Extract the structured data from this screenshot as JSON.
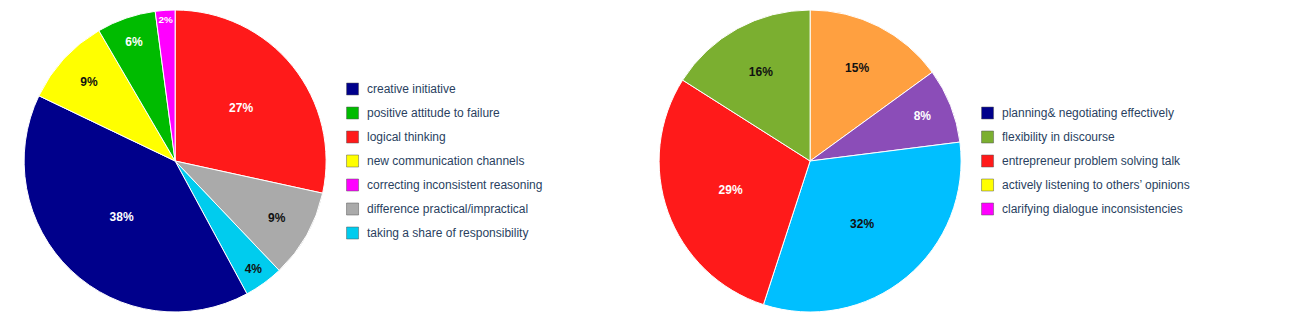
{
  "chart_data": [
    {
      "type": "pie",
      "values": [
        27,
        9,
        4,
        38,
        9,
        6,
        2
      ],
      "value_labels": [
        "27%",
        "9%",
        "4%",
        "38%",
        "9%",
        "6%",
        "2%"
      ],
      "colors": [
        "#FF1A1A",
        "#AAAAAA",
        "#00CCEE",
        "#00008B",
        "#FFFF00",
        "#00BB00",
        "#FF00FF"
      ],
      "data_labels": true,
      "legend": "right",
      "legend_entries": [
        {
          "name": "creative initiative",
          "color": "#00008B"
        },
        {
          "name": "positive attitude to failure",
          "color": "#00BB00"
        },
        {
          "name": "logical thinking",
          "color": "#FF1A1A"
        },
        {
          "name": "new communication channels",
          "color": "#FFFF00"
        },
        {
          "name": "correcting inconsistent reasoning",
          "color": "#FF00FF"
        },
        {
          "name": "difference practical/impractical",
          "color": "#AAAAAA"
        },
        {
          "name": "taking a share of responsibility",
          "color": "#00CCEE"
        }
      ]
    },
    {
      "type": "pie",
      "values": [
        15,
        8,
        32,
        29,
        16
      ],
      "value_labels": [
        "15%",
        "8%",
        "32%",
        "29%",
        "16%"
      ],
      "colors": [
        "#FFA040",
        "#8B4DB8",
        "#00BFFF",
        "#FF1A1A",
        "#7BAF30"
      ],
      "data_labels": true,
      "legend": "right",
      "legend_entries": [
        {
          "name": "planning& negotiating effectively",
          "color": "#00008B"
        },
        {
          "name": "flexibility in discourse",
          "color": "#7BAF30"
        },
        {
          "name": "entrepreneur problem solving talk",
          "color": "#FF1A1A"
        },
        {
          "name": "actively listening to others’ opinions",
          "color": "#FFFF00"
        },
        {
          "name": "clarifying dialogue inconsistencies",
          "color": "#FF00FF"
        }
      ]
    }
  ]
}
